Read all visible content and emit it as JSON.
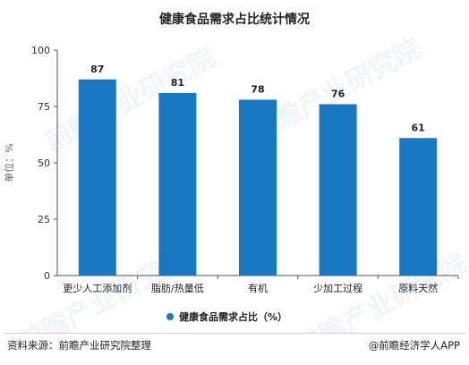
{
  "chart_data": {
    "type": "bar",
    "title": "健康食品需求占比统计情况",
    "categories": [
      "更少人工添加剂",
      "脂肪/热量低",
      "有机",
      "少加工过程",
      "原料天然"
    ],
    "series": [
      {
        "name": "健康食品需求占比（%）",
        "values": [
          87,
          81,
          78,
          76,
          61
        ],
        "color": "#1a78c2"
      }
    ],
    "ylabel": "单位：%",
    "ylim": [
      0,
      100
    ],
    "yticks": [
      0,
      25,
      50,
      75,
      100
    ],
    "grid": false,
    "legend_position": "bottom"
  },
  "footer": {
    "source": "资料来源：前瞻产业研究院整理",
    "brand": "@前瞻经济学人APP"
  },
  "watermark": "前瞻产业研究院"
}
